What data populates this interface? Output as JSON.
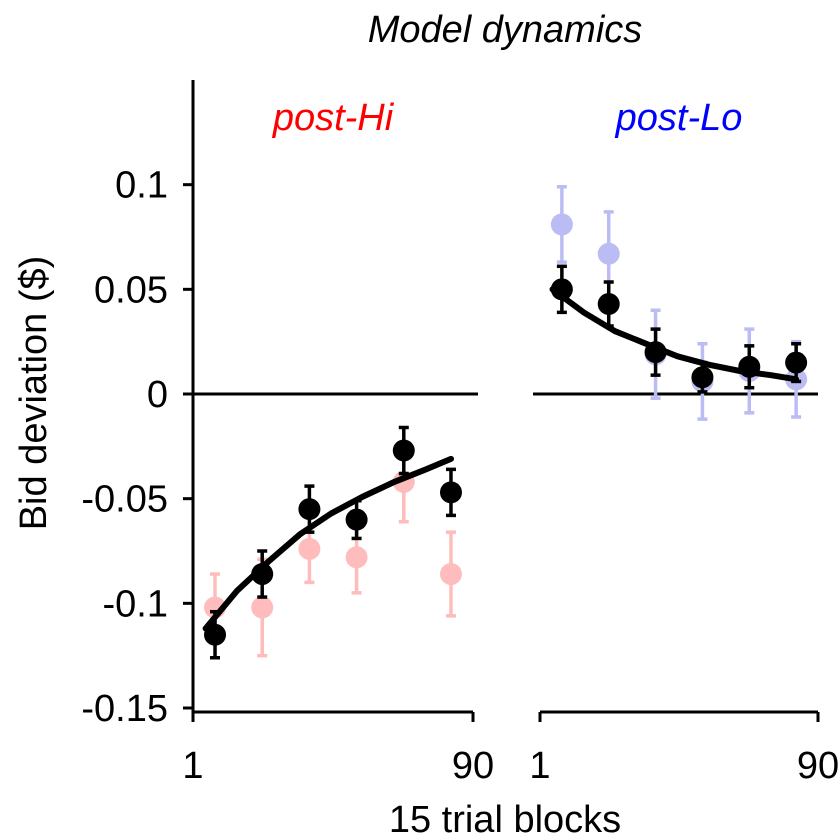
{
  "chart_data": {
    "type": "scatter",
    "title": "Model dynamics",
    "xlabel": "15 trial blocks",
    "ylabel": "Bid deviation ($)",
    "ylim": [
      -0.15,
      0.15
    ],
    "yticks": [
      -0.15,
      -0.1,
      -0.05,
      0,
      0.05,
      0.1
    ],
    "hline": 0,
    "panels": [
      {
        "subtitle": "post-Hi",
        "subtitle_color": "#ff0000",
        "x": [
          8,
          23,
          38,
          53,
          68,
          83
        ],
        "xlim": [
          1,
          90
        ],
        "xticks": [
          1,
          90
        ],
        "series": [
          {
            "color": "#ffbcbc",
            "values": [
              -0.102,
              -0.102,
              -0.074,
              -0.078,
              -0.042,
              -0.086
            ],
            "errors": [
              0.016,
              0.023,
              0.016,
              0.017,
              0.019,
              0.02
            ]
          },
          {
            "color": "#000000",
            "values": [
              -0.115,
              -0.086,
              -0.055,
              -0.06,
              -0.027,
              -0.047
            ],
            "errors": [
              0.011,
              0.011,
              0.011,
              0.009,
              0.011,
              0.011
            ]
          }
        ],
        "fit": {
          "color": "#000000",
          "x": [
            5,
            15,
            25,
            35,
            45,
            55,
            65,
            75,
            83
          ],
          "values": [
            -0.112,
            -0.094,
            -0.08,
            -0.067,
            -0.057,
            -0.049,
            -0.042,
            -0.036,
            -0.031
          ]
        }
      },
      {
        "subtitle": "post-Lo",
        "subtitle_color": "#0000ff",
        "x": [
          8,
          23,
          38,
          53,
          68,
          83
        ],
        "xlim": [
          1,
          90
        ],
        "xticks": [
          1,
          90
        ],
        "series": [
          {
            "color": "#bcbcf5",
            "values": [
              0.081,
              0.067,
              0.019,
              0.006,
              0.011,
              0.007
            ],
            "errors": [
              0.018,
              0.02,
              0.021,
              0.018,
              0.02,
              0.018
            ]
          },
          {
            "color": "#000000",
            "values": [
              0.05,
              0.043,
              0.02,
              0.008,
              0.013,
              0.015
            ],
            "errors": [
              0.011,
              0.0105,
              0.011,
              0.007,
              0.01,
              0.009
            ]
          }
        ],
        "fit": {
          "color": "#000000",
          "x": [
            5,
            15,
            25,
            35,
            45,
            55,
            65,
            75,
            83
          ],
          "values": [
            0.05,
            0.039,
            0.03,
            0.024,
            0.018,
            0.014,
            0.011,
            0.009,
            0.007
          ]
        }
      }
    ]
  }
}
